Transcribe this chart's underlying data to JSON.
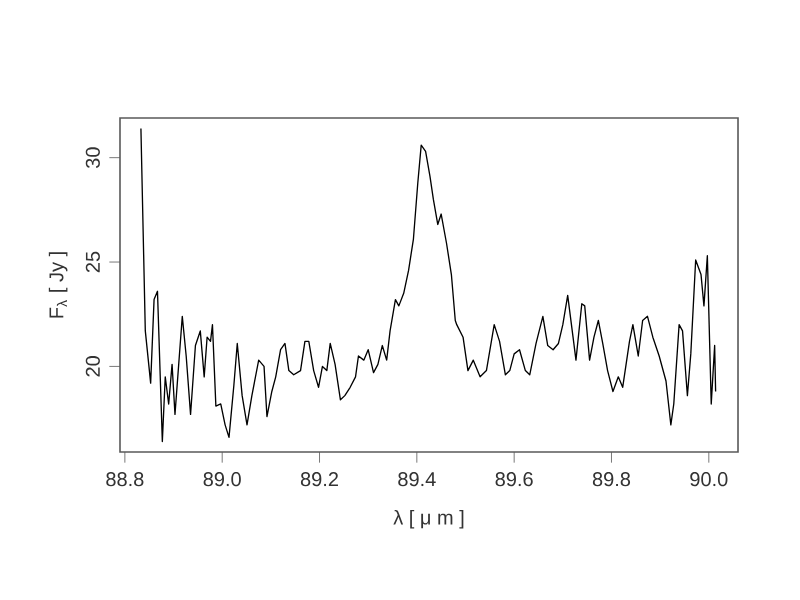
{
  "chart_data": {
    "type": "line",
    "xlabel": "λ [ μ m ]",
    "ylabel": "F$_{λ}$ [ Jy ]",
    "xlim": [
      88.79,
      90.06
    ],
    "ylim": [
      15.9,
      31.9
    ],
    "xticks": [
      88.8,
      {
        "value": 89.0,
        "label": "89.0"
      },
      89.2,
      89.4,
      89.6,
      89.8,
      {
        "value": 90.0,
        "label": "90.0"
      }
    ],
    "yticks": [
      20,
      25,
      30
    ],
    "grid": false,
    "line_style": "solid",
    "series": [
      {
        "color": "#000000",
        "x": [
          88.833,
          88.842,
          88.853,
          88.86,
          88.867,
          88.877,
          88.883,
          88.89,
          88.897,
          88.903,
          88.918,
          88.926,
          88.935,
          88.945,
          88.955,
          88.963,
          88.969,
          88.976,
          88.98,
          88.987,
          88.997,
          89.006,
          89.014,
          89.024,
          89.031,
          89.041,
          89.051,
          89.061,
          89.075,
          89.086,
          89.092,
          89.102,
          89.11,
          89.12,
          89.129,
          89.137,
          89.147,
          89.161,
          89.17,
          89.178,
          89.188,
          89.198,
          89.206,
          89.215,
          89.222,
          89.232,
          89.243,
          89.252,
          89.263,
          89.274,
          89.28,
          89.291,
          89.3,
          89.311,
          89.32,
          89.329,
          89.338,
          89.345,
          89.356,
          89.363,
          89.373,
          89.383,
          89.393,
          89.402,
          89.409,
          89.418,
          89.427,
          89.434,
          89.443,
          89.45,
          89.461,
          89.471,
          89.479,
          89.482,
          89.495,
          89.505,
          89.516,
          89.53,
          89.543,
          89.559,
          89.57,
          89.582,
          89.591,
          89.6,
          89.611,
          89.623,
          89.632,
          89.645,
          89.659,
          89.669,
          89.68,
          89.691,
          89.7,
          89.71,
          89.721,
          89.727,
          89.739,
          89.745,
          89.755,
          89.764,
          89.773,
          89.782,
          89.792,
          89.803,
          89.814,
          89.823,
          89.837,
          89.844,
          89.855,
          89.864,
          89.874,
          89.885,
          89.898,
          89.912,
          89.922,
          89.928,
          89.939,
          89.946,
          89.956,
          89.963,
          89.973,
          89.984,
          89.99,
          89.997,
          90.005,
          90.012,
          90.014
        ],
        "values": [
          31.4,
          21.7,
          19.2,
          23.2,
          23.6,
          16.4,
          19.5,
          18.2,
          20.1,
          17.7,
          22.4,
          20.5,
          17.7,
          21.0,
          21.7,
          19.5,
          21.4,
          21.2,
          22.0,
          18.1,
          18.2,
          17.2,
          16.6,
          19.1,
          21.1,
          18.6,
          17.2,
          18.6,
          20.3,
          20.0,
          17.6,
          18.8,
          19.5,
          20.8,
          21.1,
          19.8,
          19.6,
          19.8,
          21.2,
          21.2,
          19.8,
          19.0,
          20.0,
          19.8,
          21.1,
          20.1,
          18.4,
          18.6,
          19.0,
          19.5,
          20.5,
          20.3,
          20.8,
          19.7,
          20.1,
          21.0,
          20.3,
          21.7,
          23.2,
          22.9,
          23.5,
          24.6,
          26.1,
          28.8,
          30.6,
          30.3,
          29.1,
          28.0,
          26.8,
          27.3,
          25.9,
          24.4,
          22.2,
          22.0,
          21.4,
          19.8,
          20.3,
          19.5,
          19.8,
          22.0,
          21.2,
          19.6,
          19.8,
          20.6,
          20.8,
          19.8,
          19.6,
          21.1,
          22.4,
          21.0,
          20.8,
          21.1,
          22.0,
          23.4,
          21.4,
          20.3,
          23.0,
          22.9,
          20.3,
          21.4,
          22.2,
          21.1,
          19.8,
          18.8,
          19.5,
          19.0,
          21.2,
          22.0,
          20.5,
          22.2,
          22.4,
          21.4,
          20.5,
          19.3,
          17.2,
          18.2,
          22.0,
          21.7,
          18.6,
          20.6,
          25.1,
          24.4,
          22.9,
          25.3,
          18.2,
          21.0,
          18.8
        ]
      }
    ]
  }
}
